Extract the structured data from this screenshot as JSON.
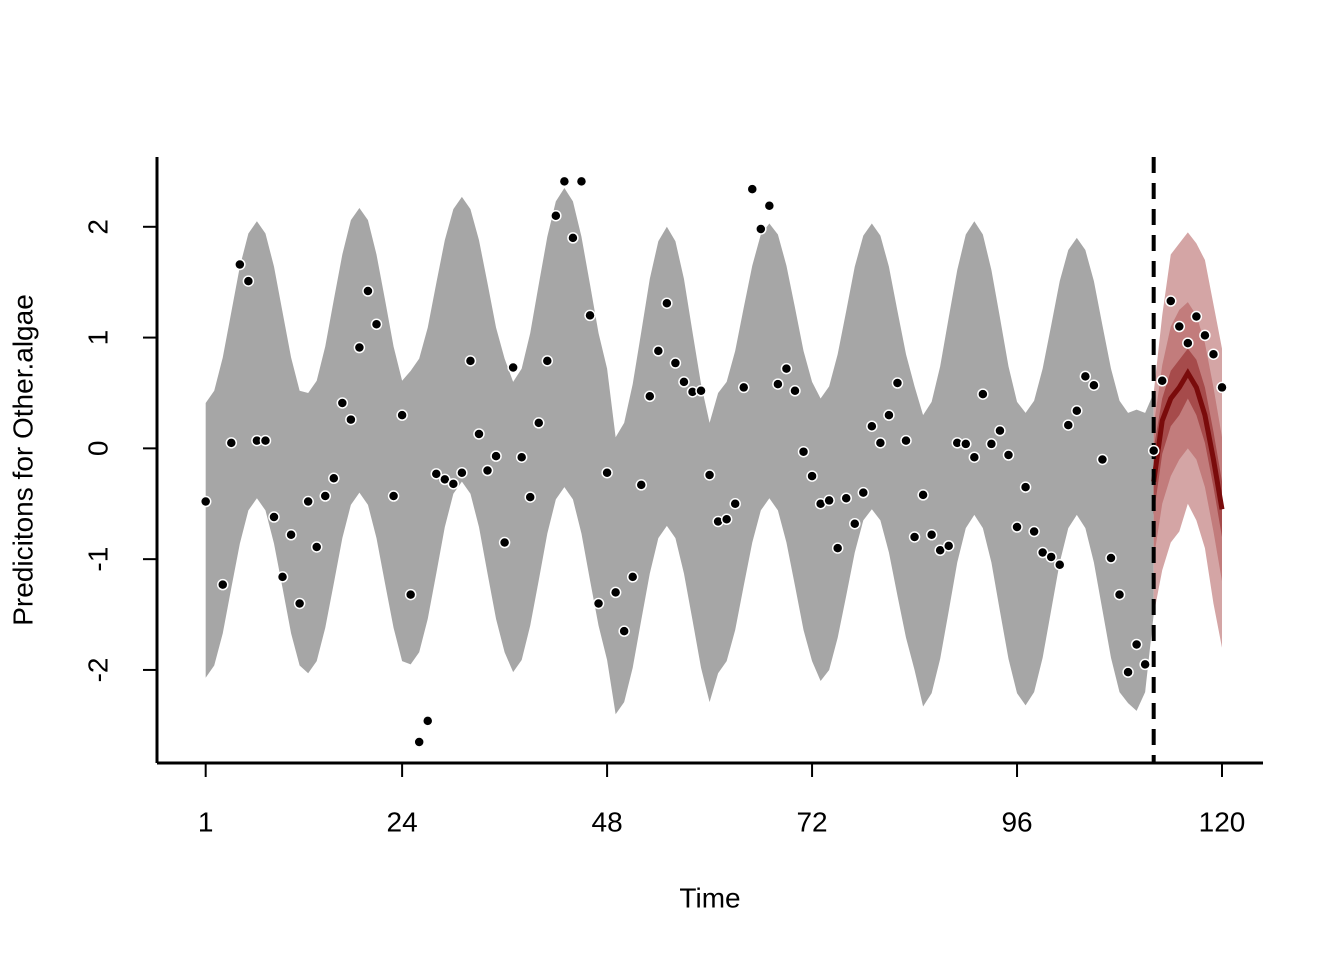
{
  "chart_data": {
    "type": "forecast",
    "xlabel": "Time",
    "ylabel": "Predicitons for Other.algae",
    "xlim": [
      -4.7,
      124.8
    ],
    "ylim": [
      -2.84,
      2.63
    ],
    "xticks": [
      1,
      24,
      48,
      72,
      96,
      120
    ],
    "yticks": [
      -2,
      -1,
      0,
      1,
      2
    ],
    "vline": 112,
    "fit": {
      "color": "#a6a6a6",
      "x": [
        1,
        2,
        3,
        4,
        5,
        6,
        7,
        8,
        9,
        10,
        11,
        12,
        13,
        14,
        15,
        16,
        17,
        18,
        19,
        20,
        21,
        22,
        23,
        24,
        25,
        26,
        27,
        28,
        29,
        30,
        31,
        32,
        33,
        34,
        35,
        36,
        37,
        38,
        39,
        40,
        41,
        42,
        43,
        44,
        45,
        46,
        47,
        48,
        49,
        50,
        51,
        52,
        53,
        54,
        55,
        56,
        57,
        58,
        59,
        60,
        61,
        62,
        63,
        64,
        65,
        66,
        67,
        68,
        69,
        70,
        71,
        72,
        73,
        74,
        75,
        76,
        77,
        78,
        79,
        80,
        81,
        82,
        83,
        84,
        85,
        86,
        87,
        88,
        89,
        90,
        91,
        92,
        93,
        94,
        95,
        96,
        97,
        98,
        99,
        100,
        101,
        102,
        103,
        104,
        105,
        106,
        107,
        108,
        109,
        110,
        111,
        112
      ],
      "upper": [
        0.41,
        0.52,
        0.82,
        1.23,
        1.64,
        1.94,
        2.05,
        1.94,
        1.64,
        1.23,
        0.82,
        0.52,
        0.5,
        0.61,
        0.92,
        1.34,
        1.75,
        2.06,
        2.17,
        2.06,
        1.75,
        1.34,
        0.92,
        0.61,
        0.7,
        0.81,
        1.09,
        1.49,
        1.88,
        2.16,
        2.27,
        2.16,
        1.88,
        1.49,
        1.09,
        0.81,
        0.6,
        0.72,
        1.04,
        1.48,
        1.91,
        2.23,
        2.35,
        2.23,
        1.91,
        1.48,
        1.04,
        0.72,
        0.1,
        0.23,
        0.58,
        1.05,
        1.53,
        1.87,
        2.0,
        1.87,
        1.53,
        1.05,
        0.58,
        0.23,
        0.5,
        0.6,
        0.88,
        1.27,
        1.65,
        1.93,
        2.03,
        1.93,
        1.65,
        1.27,
        0.88,
        0.6,
        0.45,
        0.56,
        0.85,
        1.24,
        1.64,
        1.92,
        2.03,
        1.92,
        1.64,
        1.24,
        0.85,
        0.56,
        0.3,
        0.42,
        0.74,
        1.18,
        1.61,
        1.93,
        2.05,
        1.93,
        1.61,
        1.18,
        0.74,
        0.42,
        0.32,
        0.43,
        0.72,
        1.11,
        1.51,
        1.79,
        1.9,
        1.79,
        1.51,
        1.11,
        0.72,
        0.43,
        0.32,
        0.35,
        0.32,
        0.5
      ],
      "lower": [
        -2.07,
        -1.96,
        -1.67,
        -1.26,
        -0.86,
        -0.56,
        -0.45,
        -0.56,
        -0.86,
        -1.26,
        -1.67,
        -1.96,
        -2.03,
        -1.92,
        -1.62,
        -1.22,
        -0.81,
        -0.51,
        -0.4,
        -0.51,
        -0.81,
        -1.22,
        -1.62,
        -1.92,
        -1.95,
        -1.84,
        -1.54,
        -1.13,
        -0.71,
        -0.41,
        -0.3,
        -0.41,
        -0.71,
        -1.13,
        -1.54,
        -1.84,
        -2.02,
        -1.91,
        -1.6,
        -1.19,
        -0.77,
        -0.46,
        -0.35,
        -0.46,
        -0.77,
        -1.19,
        -1.6,
        -1.91,
        -2.4,
        -2.29,
        -1.98,
        -1.55,
        -1.13,
        -0.81,
        -0.7,
        -0.81,
        -1.13,
        -1.55,
        -1.98,
        -2.29,
        -2.03,
        -1.92,
        -1.64,
        -1.24,
        -0.85,
        -0.56,
        -0.45,
        -0.56,
        -0.85,
        -1.24,
        -1.64,
        -1.92,
        -2.1,
        -2.0,
        -1.71,
        -1.33,
        -0.94,
        -0.65,
        -0.55,
        -0.65,
        -0.94,
        -1.33,
        -1.71,
        -2.0,
        -2.33,
        -2.21,
        -1.9,
        -1.47,
        -1.03,
        -0.72,
        -0.6,
        -0.72,
        -1.03,
        -1.47,
        -1.9,
        -2.21,
        -2.32,
        -2.2,
        -1.89,
        -1.46,
        -1.03,
        -0.72,
        -0.6,
        -0.72,
        -1.03,
        -1.46,
        -1.89,
        -2.2,
        -2.3,
        -2.37,
        -2.2,
        -1.5
      ]
    },
    "forecast": {
      "x": [
        112,
        113,
        114,
        115,
        116,
        117,
        118,
        119,
        120
      ],
      "median": [
        -0.3,
        0.25,
        0.45,
        0.55,
        0.68,
        0.55,
        0.3,
        -0.1,
        -0.55
      ],
      "line_color": "#7a0b0b",
      "bands": [
        {
          "color": "#d4a5a5",
          "upper": [
            0.5,
            1.2,
            1.75,
            1.85,
            1.95,
            1.85,
            1.7,
            1.3,
            0.9
          ],
          "lower": [
            -1.5,
            -1.1,
            -0.85,
            -0.75,
            -0.5,
            -0.65,
            -0.9,
            -1.4,
            -1.8
          ]
        },
        {
          "color": "#c27c7c",
          "upper": [
            0.2,
            0.75,
            1.1,
            1.25,
            1.32,
            1.2,
            0.95,
            0.55,
            0.1
          ],
          "lower": [
            -1.0,
            -0.5,
            -0.25,
            -0.1,
            0.0,
            -0.1,
            -0.35,
            -0.75,
            -1.2
          ]
        },
        {
          "color": "#a64b4b",
          "upper": [
            0.0,
            0.45,
            0.7,
            0.8,
            0.9,
            0.8,
            0.55,
            0.15,
            -0.3
          ],
          "lower": [
            -0.6,
            -0.05,
            0.2,
            0.3,
            0.45,
            0.3,
            0.05,
            -0.35,
            -0.8
          ]
        }
      ]
    },
    "points": {
      "color": "#000000",
      "x": [
        1,
        3,
        4,
        5,
        6,
        7,
        8,
        9,
        10,
        11,
        12,
        13,
        14,
        15,
        16,
        17,
        18,
        19,
        20,
        21,
        23,
        24,
        25,
        26,
        27,
        28,
        29,
        30,
        31,
        32,
        33,
        34,
        35,
        36,
        37,
        38,
        39,
        40,
        41,
        42,
        43,
        44,
        45,
        46,
        47,
        48,
        49,
        50,
        51,
        52,
        53,
        54,
        55,
        56,
        57,
        58,
        59,
        60,
        61,
        62,
        63,
        64,
        65,
        66,
        67,
        68,
        69,
        70,
        71,
        72,
        73,
        74,
        75,
        76,
        77,
        78,
        79,
        80,
        81,
        82,
        83,
        84,
        85,
        86,
        87,
        88,
        89,
        90,
        91,
        92,
        93,
        94,
        95,
        96,
        97,
        98,
        99,
        100,
        101,
        102,
        103,
        104,
        105,
        106,
        107,
        108,
        109,
        110,
        111,
        112,
        113,
        114,
        115,
        116,
        117,
        118,
        119,
        120
      ],
      "values": [
        -0.48,
        -1.23,
        0.05,
        1.66,
        1.51,
        0.07,
        0.07,
        -0.62,
        -1.16,
        -0.78,
        -1.4,
        -0.48,
        -0.89,
        -0.43,
        -0.27,
        0.41,
        0.26,
        0.91,
        1.42,
        1.12,
        -0.43,
        0.3,
        -1.32,
        -2.65,
        -2.46,
        -0.23,
        -0.28,
        -0.32,
        -0.22,
        0.79,
        0.13,
        -0.2,
        -0.07,
        -0.85,
        0.73,
        -0.08,
        -0.44,
        0.23,
        0.79,
        2.1,
        2.41,
        1.9,
        2.41,
        1.2,
        -1.4,
        -0.22,
        -1.3,
        -1.65,
        -1.16,
        -0.33,
        0.47,
        0.88,
        1.31,
        0.77,
        0.6,
        0.51,
        0.52,
        -0.24,
        -0.66,
        -0.64,
        -0.5,
        0.55,
        2.34,
        1.98,
        2.19,
        0.58,
        0.72,
        0.52,
        -0.03,
        -0.25,
        -0.5,
        -0.47,
        -0.9,
        -0.45,
        -0.68,
        -0.4,
        0.2,
        0.05,
        0.3,
        0.59,
        0.07,
        -0.8,
        -0.42,
        -0.78,
        -0.92,
        -0.88,
        0.05,
        0.04,
        -0.08,
        0.49,
        0.04,
        0.16,
        -0.06,
        -0.71,
        -0.35,
        -0.75,
        -0.94,
        -0.98,
        -1.05,
        0.21,
        0.34,
        0.65,
        0.57,
        -0.1,
        -0.99,
        -1.32,
        -2.02,
        -1.77,
        -1.95,
        -0.02,
        0.61,
        1.33,
        1.1,
        0.95,
        1.19,
        1.02,
        0.85,
        0.55
      ]
    }
  }
}
